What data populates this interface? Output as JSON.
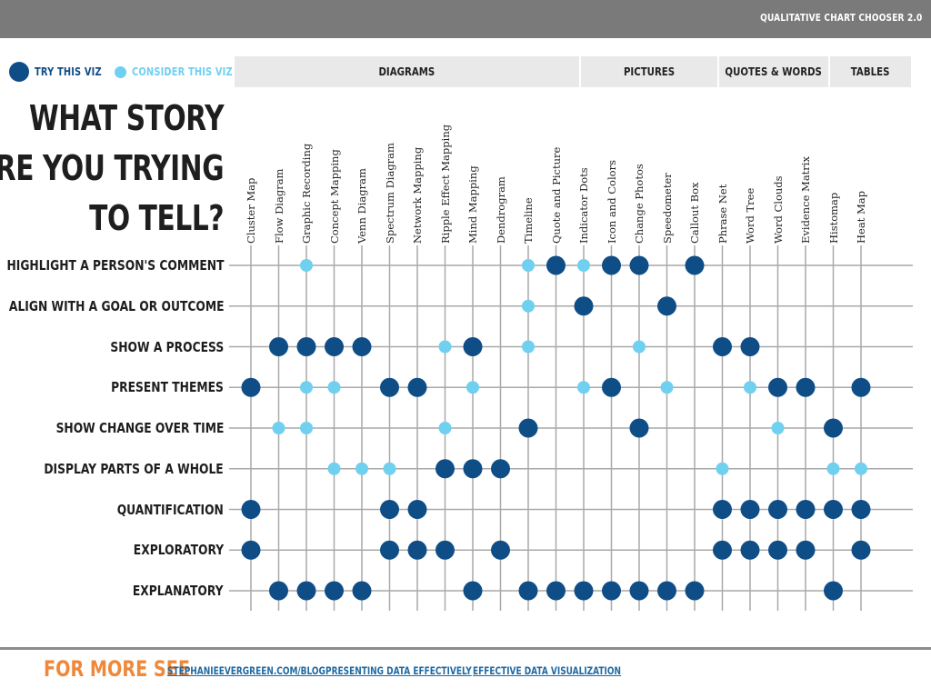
{
  "header": {
    "title": "QUALITATIVE CHART CHOOSER 2.0"
  },
  "legend": {
    "try": {
      "label": "TRY THIS VIZ",
      "color": "#0f4d87"
    },
    "consider": {
      "label": "CONSIDER THIS VIZ",
      "color": "#6fd0f0"
    }
  },
  "groups": [
    {
      "label": "DIAGRAMS"
    },
    {
      "label": "PICTURES"
    },
    {
      "label": "QUOTES & WORDS"
    },
    {
      "label": "TABLES"
    }
  ],
  "headline": {
    "line1": "WHAT STORY",
    "line2": "ARE YOU TRYING",
    "line3": "TO TELL?"
  },
  "chart_data": {
    "type": "table",
    "columns": [
      "Cluster Map",
      "Flow Diagram",
      "Graphic Recording",
      "Concept Mapping",
      "Venn Diagram",
      "Spectrum Diagram",
      "Network Mapping",
      "Ripple Effect Mapping",
      "Mind Mapping",
      "Dendrogram",
      "Timeline",
      "Quote and Picture",
      "Indicator Dots",
      "Icon and Colors",
      "Change Photos",
      "Speedometer",
      "Callout Box",
      "Phrase Net",
      "Word Tree",
      "Word Clouds",
      "Evidence Matrix",
      "Histomap",
      "Heat Map"
    ],
    "rows": [
      "HIGHLIGHT A PERSON'S COMMENT",
      "ALIGN WITH A GOAL OR OUTCOME",
      "SHOW A PROCESS",
      "PRESENT THEMES",
      "SHOW CHANGE OVER TIME",
      "DISPLAY PARTS OF A WHOLE",
      "QUANTIFICATION",
      "EXPLORATORY",
      "EXPLANATORY"
    ],
    "legend": {
      "2": "TRY THIS VIZ",
      "1": "CONSIDER THIS VIZ",
      "0": ""
    },
    "values": [
      [
        0,
        0,
        1,
        0,
        0,
        0,
        0,
        0,
        0,
        0,
        1,
        2,
        1,
        2,
        2,
        0,
        2,
        0,
        0,
        0,
        0,
        0,
        0
      ],
      [
        0,
        0,
        0,
        0,
        0,
        0,
        0,
        0,
        0,
        0,
        1,
        0,
        2,
        0,
        0,
        2,
        0,
        0,
        0,
        0,
        0,
        0,
        0
      ],
      [
        0,
        2,
        2,
        2,
        2,
        0,
        0,
        1,
        2,
        0,
        1,
        0,
        0,
        0,
        1,
        0,
        0,
        2,
        2,
        0,
        0,
        0,
        0
      ],
      [
        2,
        0,
        1,
        1,
        0,
        2,
        2,
        0,
        1,
        0,
        0,
        0,
        1,
        2,
        0,
        1,
        0,
        0,
        1,
        2,
        2,
        0,
        2
      ],
      [
        0,
        1,
        1,
        0,
        0,
        0,
        0,
        1,
        0,
        0,
        2,
        0,
        0,
        0,
        2,
        0,
        0,
        0,
        0,
        1,
        0,
        2,
        0
      ],
      [
        0,
        0,
        0,
        1,
        1,
        1,
        0,
        2,
        2,
        2,
        0,
        0,
        0,
        0,
        0,
        0,
        0,
        1,
        0,
        0,
        0,
        1,
        1
      ],
      [
        2,
        0,
        0,
        0,
        0,
        2,
        2,
        0,
        0,
        0,
        0,
        0,
        0,
        0,
        0,
        0,
        0,
        2,
        2,
        2,
        2,
        2,
        2
      ],
      [
        2,
        0,
        0,
        0,
        0,
        2,
        2,
        2,
        0,
        2,
        0,
        0,
        0,
        0,
        0,
        0,
        0,
        2,
        2,
        2,
        2,
        0,
        2
      ],
      [
        0,
        2,
        2,
        2,
        2,
        0,
        0,
        0,
        2,
        0,
        2,
        2,
        2,
        2,
        2,
        2,
        2,
        0,
        0,
        0,
        0,
        2,
        0
      ]
    ]
  },
  "footer": {
    "label": "FOR MORE SEE",
    "links": [
      "STEPHANIEEVERGREEN.COM/BLOG",
      "PRESENTING DATA EFFECTIVELY",
      "EFFECTIVE DATA VISUALIZATION"
    ]
  }
}
